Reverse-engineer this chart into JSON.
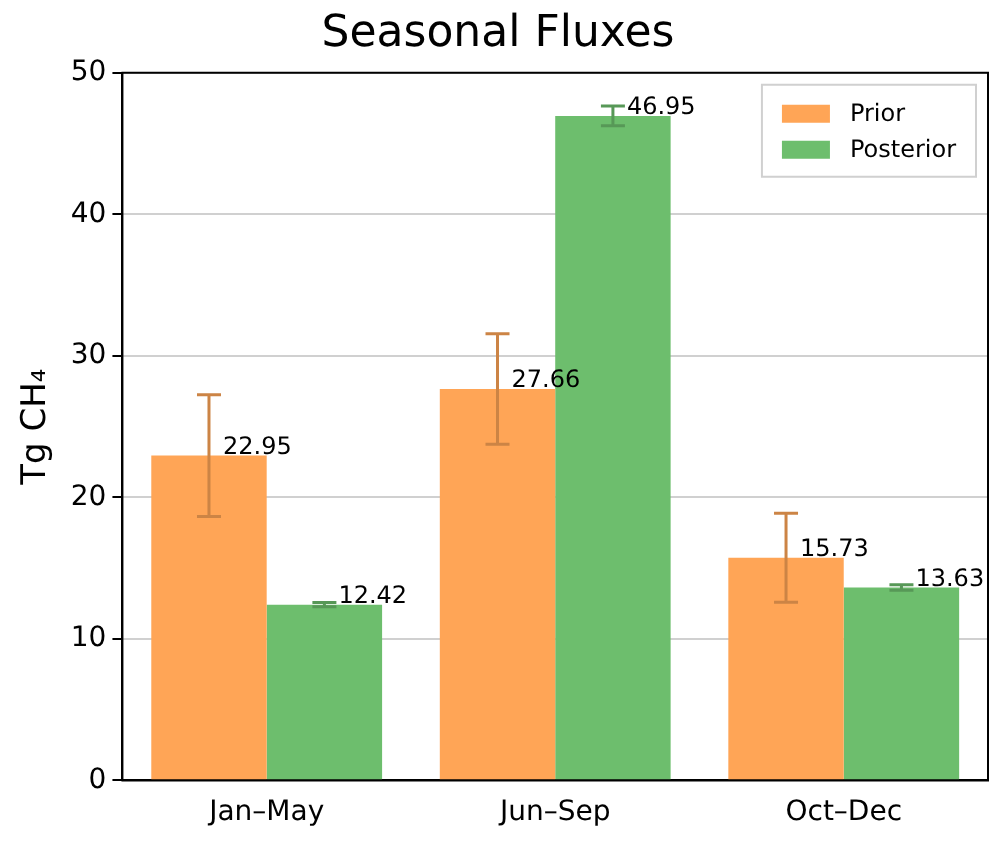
{
  "chart_data": {
    "type": "bar",
    "title": "Seasonal Fluxes",
    "ylabel": "Tg CH₄",
    "categories": [
      "Jan–May",
      "Jun–Sep",
      "Oct–Dec"
    ],
    "series": [
      {
        "name": "Prior",
        "color": "#ffa556",
        "values": [
          22.95,
          27.66,
          15.73
        ],
        "errors": [
          4.3,
          3.9,
          3.15
        ]
      },
      {
        "name": "Posterior",
        "color": "#6dbe6d",
        "values": [
          12.42,
          46.95,
          13.63
        ],
        "errors": [
          0.15,
          0.7,
          0.2
        ]
      }
    ],
    "ylim": [
      0,
      50
    ],
    "yticks": [
      0,
      10,
      20,
      30,
      40,
      50
    ],
    "grid": "y",
    "legend": "top right",
    "data_labels": true
  }
}
